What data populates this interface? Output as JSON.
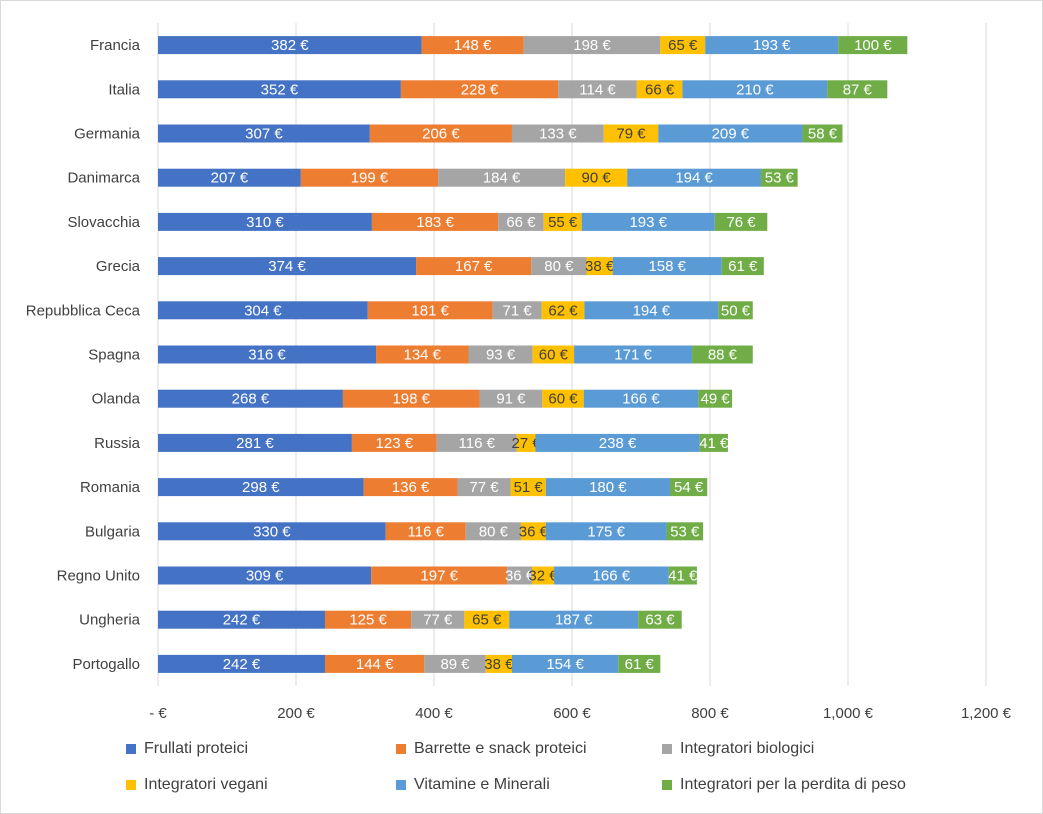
{
  "chart_data": {
    "type": "bar",
    "orientation": "horizontal",
    "stacked": true,
    "categories": [
      "Francia",
      "Italia",
      "Germania",
      "Danimarca",
      "Slovacchia",
      "Grecia",
      "Repubblica Ceca",
      "Spagna",
      "Olanda",
      "Russia",
      "Romania",
      "Bulgaria",
      "Regno Unito",
      "Ungheria",
      "Portogallo"
    ],
    "series": [
      {
        "name": "Frullati proteici",
        "color": "#4472c4",
        "label_color": "#ffffff",
        "values": [
          382,
          352,
          307,
          207,
          310,
          374,
          304,
          316,
          268,
          281,
          298,
          330,
          309,
          242,
          242
        ]
      },
      {
        "name": "Barrette e snack proteici",
        "color": "#ed7d31",
        "label_color": "#ffffff",
        "values": [
          148,
          228,
          206,
          199,
          183,
          167,
          181,
          134,
          198,
          123,
          136,
          116,
          197,
          125,
          144
        ]
      },
      {
        "name": "Integratori biologici",
        "color": "#a5a5a5",
        "label_color": "#ffffff",
        "values": [
          198,
          114,
          133,
          184,
          66,
          80,
          71,
          93,
          91,
          116,
          77,
          80,
          36,
          77,
          89
        ]
      },
      {
        "name": "Integratori vegani",
        "color": "#ffc000",
        "label_color": "#404040",
        "values": [
          65,
          66,
          79,
          90,
          55,
          38,
          62,
          60,
          60,
          27,
          51,
          36,
          32,
          65,
          38
        ]
      },
      {
        "name": "Vitamine e Minerali",
        "color": "#5b9bd5",
        "label_color": "#ffffff",
        "values": [
          193,
          210,
          209,
          194,
          193,
          158,
          194,
          171,
          166,
          238,
          180,
          175,
          166,
          187,
          154
        ]
      },
      {
        "name": "Integratori per la perdita di peso",
        "color": "#70ad47",
        "label_color": "#ffffff",
        "values": [
          100,
          87,
          58,
          53,
          76,
          61,
          50,
          88,
          49,
          41,
          54,
          53,
          41,
          63,
          61
        ]
      }
    ],
    "value_suffix": " €",
    "xlim": [
      0,
      1200
    ],
    "x_ticks": [
      0,
      200,
      400,
      600,
      800,
      1000,
      1200
    ],
    "x_tick_labels": [
      "- €",
      "200 €",
      "400 €",
      "600 €",
      "800 €",
      "1,000 €",
      "1,200 €"
    ],
    "grid": "vertical",
    "legend_position": "bottom",
    "title": "",
    "xlabel": "",
    "ylabel": ""
  }
}
